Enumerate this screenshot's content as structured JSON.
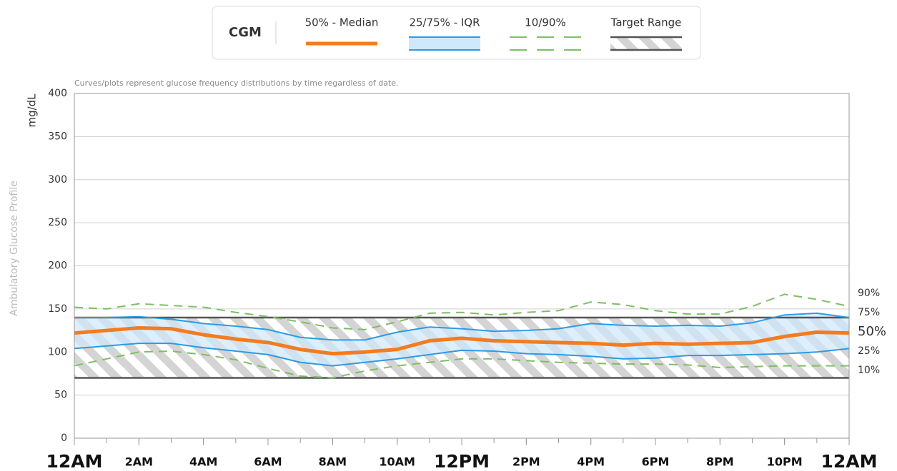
{
  "chart_data": {
    "type": "agp",
    "legend_title": "CGM",
    "footnote": "Curves/plots represent glucose frequency distributions by time regardless of date.",
    "ylabel": "mg/dL",
    "side_label": "Ambulatory Glucose Profile",
    "x": [
      0,
      1,
      2,
      3,
      4,
      5,
      6,
      7,
      8,
      9,
      10,
      11,
      12,
      13,
      14,
      15,
      16,
      17,
      18,
      19,
      20,
      21,
      22,
      23,
      24
    ],
    "xlim": [
      0,
      24
    ],
    "xticks": [
      {
        "value": 0,
        "label": "12AM"
      },
      {
        "value": 2,
        "label": "2AM"
      },
      {
        "value": 4,
        "label": "4AM"
      },
      {
        "value": 6,
        "label": "6AM"
      },
      {
        "value": 8,
        "label": "8AM"
      },
      {
        "value": 10,
        "label": "10AM"
      },
      {
        "value": 12,
        "label": "12PM"
      },
      {
        "value": 14,
        "label": "2PM"
      },
      {
        "value": 16,
        "label": "4PM"
      },
      {
        "value": 18,
        "label": "6PM"
      },
      {
        "value": 20,
        "label": "8PM"
      },
      {
        "value": 22,
        "label": "10PM"
      },
      {
        "value": 24,
        "label": "12AM"
      }
    ],
    "ylim": [
      0,
      400
    ],
    "yticks": [
      0,
      50,
      100,
      150,
      200,
      250,
      300,
      350,
      400
    ],
    "grid": true,
    "median": {
      "name": "50% - Median",
      "color": "#f47b20",
      "values": [
        122,
        125,
        128,
        127,
        120,
        115,
        111,
        103,
        98,
        100,
        103,
        113,
        116,
        113,
        112,
        111,
        110,
        108,
        110,
        109,
        110,
        111,
        118,
        123,
        122
      ]
    },
    "iqr": {
      "name": "25/75% - IQR",
      "color": "#2c9be6",
      "fill": "#cfe8fb",
      "upper": [
        140,
        140,
        141,
        138,
        133,
        130,
        126,
        117,
        114,
        114,
        123,
        129,
        127,
        124,
        125,
        127,
        133,
        131,
        130,
        131,
        130,
        134,
        143,
        145,
        140
      ],
      "lower": [
        104,
        107,
        110,
        110,
        105,
        101,
        97,
        88,
        84,
        88,
        92,
        97,
        102,
        101,
        98,
        97,
        95,
        92,
        93,
        96,
        96,
        97,
        98,
        100,
        104
      ]
    },
    "outer": {
      "name": "10/90%",
      "color": "#7dbf63",
      "upper": [
        152,
        150,
        156,
        154,
        152,
        146,
        141,
        135,
        128,
        126,
        135,
        145,
        146,
        143,
        146,
        148,
        158,
        155,
        148,
        144,
        144,
        153,
        167,
        161,
        153
      ],
      "lower": [
        84,
        92,
        100,
        101,
        97,
        91,
        81,
        72,
        70,
        78,
        84,
        88,
        92,
        92,
        90,
        88,
        87,
        86,
        86,
        85,
        82,
        83,
        84,
        84,
        84
      ]
    },
    "target_range": {
      "name": "Target Range",
      "color": "#555555",
      "low": 70,
      "high": 140
    },
    "end_labels": [
      "90%",
      "75%",
      "50%",
      "25%",
      "10%"
    ]
  }
}
